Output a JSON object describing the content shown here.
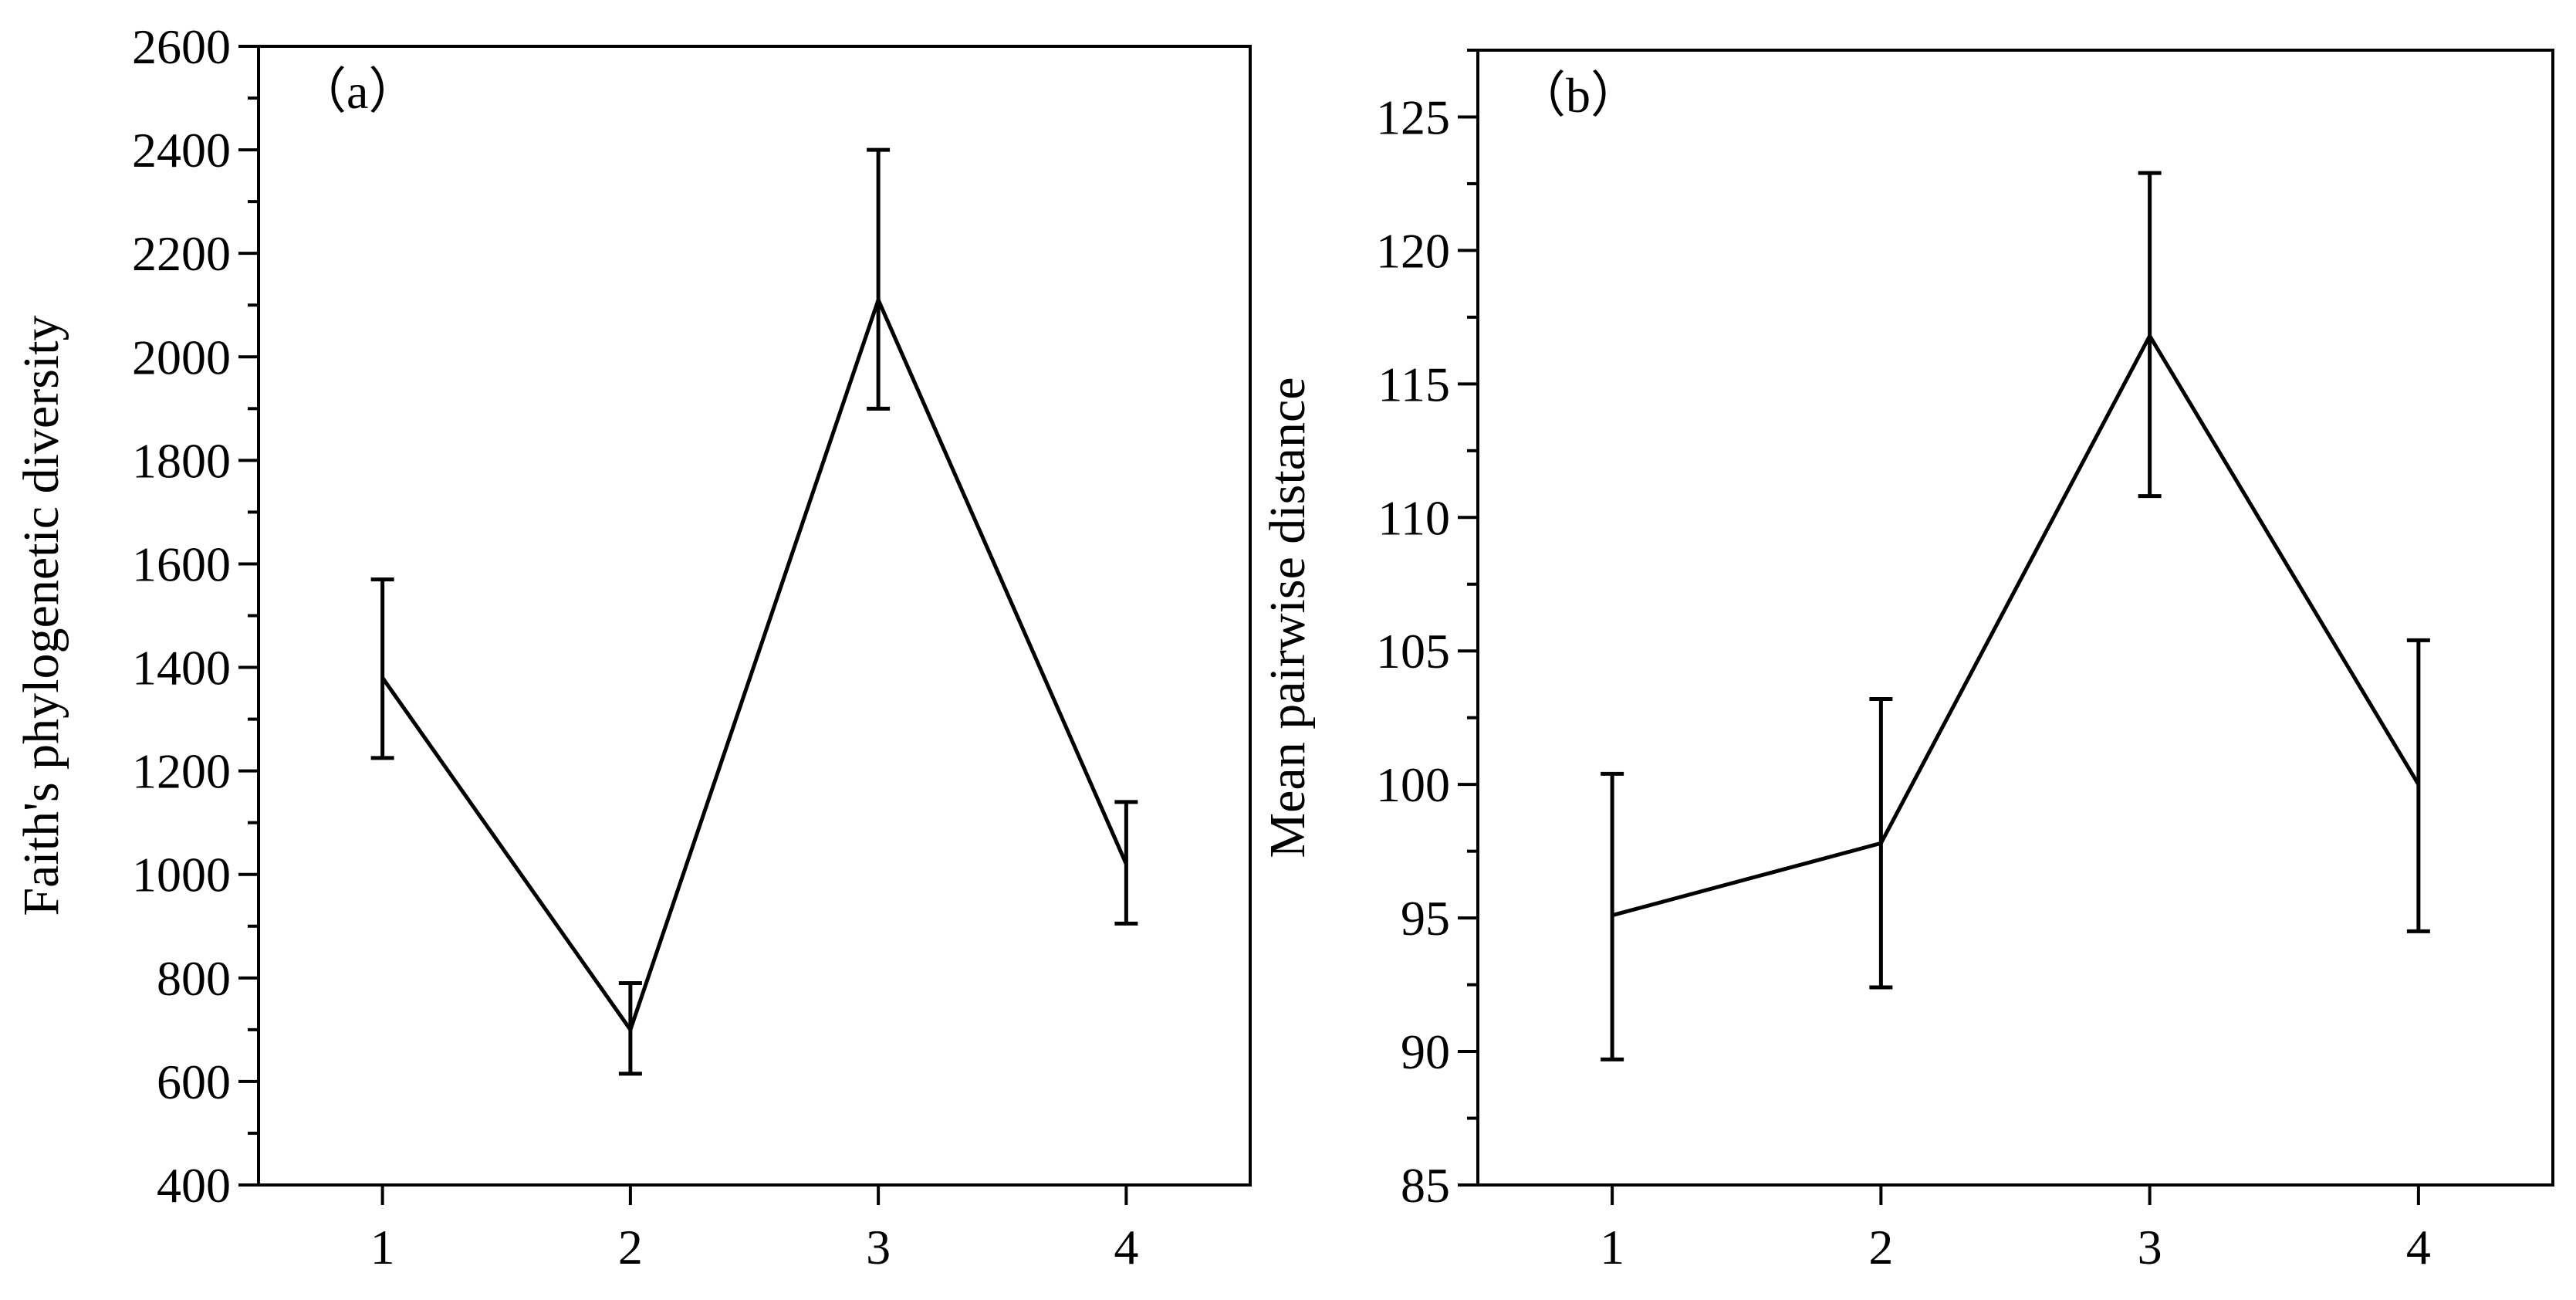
{
  "chart_data": [
    {
      "type": "line",
      "panel_label": "（a）",
      "xlabel": "",
      "ylabel": "Faith's phylogenetic diversity",
      "x": [
        1,
        2,
        3,
        4
      ],
      "x_ticks": [
        "1",
        "2",
        "3",
        "4"
      ],
      "xlim": [
        0.5,
        4.5
      ],
      "ylim": [
        400,
        2600
      ],
      "y_ticks": [
        "400",
        "600",
        "800",
        "1000",
        "1200",
        "1400",
        "1600",
        "1800",
        "2000",
        "2200",
        "2400",
        "2600"
      ],
      "series": [
        {
          "values": [
            1380,
            700,
            2110,
            1020
          ],
          "error_lower": [
            1225,
            615,
            1900,
            905
          ],
          "error_upper": [
            1570,
            790,
            2400,
            1140
          ]
        }
      ],
      "grid": false,
      "color": "#000000"
    },
    {
      "type": "line",
      "panel_label": "（b）",
      "xlabel": "",
      "ylabel": "Mean pairwise distance",
      "x": [
        1,
        2,
        3,
        4
      ],
      "x_ticks": [
        "1",
        "2",
        "3",
        "4"
      ],
      "xlim": [
        0.5,
        4.5
      ],
      "ylim": [
        85,
        127.5
      ],
      "y_ticks": [
        "85",
        "90",
        "95",
        "100",
        "105",
        "110",
        "115",
        "120",
        "125"
      ],
      "series": [
        {
          "values": [
            95.1,
            97.8,
            116.8,
            100
          ],
          "error_lower": [
            89.7,
            92.4,
            110.8,
            94.5
          ],
          "error_upper": [
            100.4,
            103.2,
            122.9,
            105.4
          ]
        }
      ],
      "grid": false,
      "color": "#000000"
    }
  ]
}
